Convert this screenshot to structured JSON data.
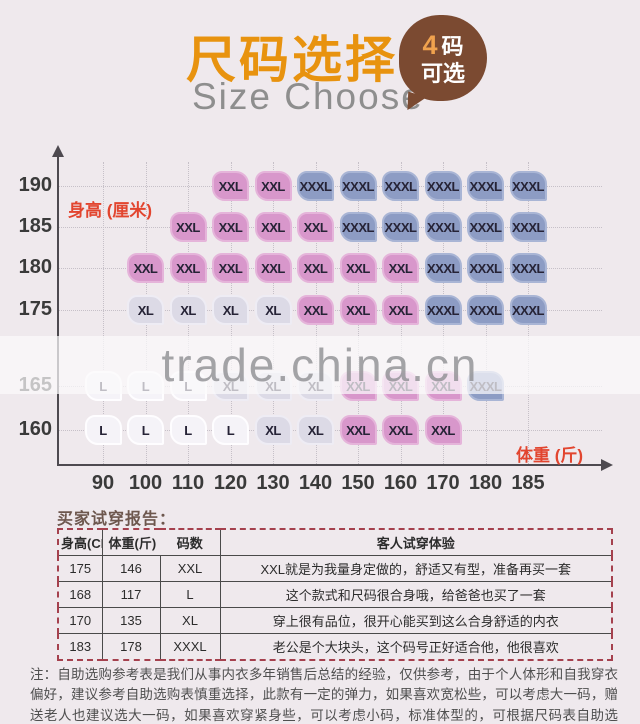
{
  "header": {
    "title_cn": "尺码选择",
    "title_en": "Size Choose",
    "badge": {
      "num": "4",
      "unit": "码",
      "line2": "可选"
    }
  },
  "chart_data": {
    "type": "scatter",
    "title": "尺码选择 Size Choose",
    "xlabel": "体重 (斤)",
    "ylabel": "身高 (厘米)",
    "x_ticks": [
      90,
      100,
      110,
      120,
      130,
      140,
      150,
      160,
      170,
      180,
      185
    ],
    "y_ticks": [
      190,
      185,
      180,
      175,
      165,
      160
    ],
    "legend_sizes": [
      "L",
      "XL",
      "XXL",
      "XXXL"
    ],
    "points": [
      {
        "height": 190,
        "tags": [
          [
            120,
            "XXL"
          ],
          [
            130,
            "XXL"
          ],
          [
            140,
            "XXXL"
          ],
          [
            150,
            "XXXL"
          ],
          [
            160,
            "XXXL"
          ],
          [
            170,
            "XXXL"
          ],
          [
            180,
            "XXXL"
          ],
          [
            185,
            "XXXL"
          ]
        ]
      },
      {
        "height": 185,
        "tags": [
          [
            110,
            "XXL"
          ],
          [
            120,
            "XXL"
          ],
          [
            130,
            "XXL"
          ],
          [
            140,
            "XXL"
          ],
          [
            150,
            "XXXL"
          ],
          [
            160,
            "XXXL"
          ],
          [
            170,
            "XXXL"
          ],
          [
            180,
            "XXXL"
          ],
          [
            185,
            "XXXL"
          ]
        ]
      },
      {
        "height": 180,
        "tags": [
          [
            100,
            "XXL"
          ],
          [
            110,
            "XXL"
          ],
          [
            120,
            "XXL"
          ],
          [
            130,
            "XXL"
          ],
          [
            140,
            "XXL"
          ],
          [
            150,
            "XXL"
          ],
          [
            160,
            "XXL"
          ],
          [
            170,
            "XXXL"
          ],
          [
            180,
            "XXXL"
          ],
          [
            185,
            "XXXL"
          ]
        ]
      },
      {
        "height": 175,
        "tags": [
          [
            100,
            "XL"
          ],
          [
            110,
            "XL"
          ],
          [
            120,
            "XL"
          ],
          [
            130,
            "XL"
          ],
          [
            140,
            "XXL"
          ],
          [
            150,
            "XXL"
          ],
          [
            160,
            "XXL"
          ],
          [
            170,
            "XXXL"
          ],
          [
            180,
            "XXXL"
          ],
          [
            185,
            "XXXL"
          ]
        ]
      },
      {
        "height": 165,
        "tags": [
          [
            90,
            "L"
          ],
          [
            100,
            "L"
          ],
          [
            110,
            "L"
          ],
          [
            120,
            "XL"
          ],
          [
            130,
            "XL"
          ],
          [
            140,
            "XL"
          ],
          [
            150,
            "XXL"
          ],
          [
            160,
            "XXL"
          ],
          [
            170,
            "XXL"
          ],
          [
            180,
            "XXXL"
          ]
        ]
      },
      {
        "height": 160,
        "tags": [
          [
            90,
            "L"
          ],
          [
            100,
            "L"
          ],
          [
            110,
            "L"
          ],
          [
            120,
            "L"
          ],
          [
            130,
            "XL"
          ],
          [
            140,
            "XL"
          ],
          [
            150,
            "XXL"
          ],
          [
            160,
            "XXL"
          ],
          [
            170,
            "XXL"
          ]
        ]
      }
    ]
  },
  "watermark": "trade.china.cn",
  "report": {
    "title": "买家试穿报告：",
    "headers": [
      "身高(CM)",
      "体重(斤)",
      "码数",
      "客人试穿体验"
    ],
    "rows": [
      [
        "175",
        "146",
        "XXL",
        "XXL就是为我量身定做的，舒适又有型，准备再买一套"
      ],
      [
        "168",
        "117",
        "L",
        "这个款式和尺码很合身哦，给爸爸也买了一套"
      ],
      [
        "170",
        "135",
        "XL",
        "穿上很有品位，很开心能买到这么合身舒适的内衣"
      ],
      [
        "183",
        "178",
        "XXXL",
        "老公是个大块头，这个码号正好适合他，他很喜欢"
      ]
    ]
  },
  "note": "注：自助选购参考表是我们从事内衣多年销售后总结的经验，仅供参考，由于个人体形和自我穿衣偏好，建议参考自助选购表慎重选择，此款有一定的弹力，如果喜欢宽松些，可以考虑大一码，赠送老人也建议选大一码，如果喜欢穿紧身些，可以考虑小码，标准体型的，可根据尺码表自助选择。",
  "colors": {
    "accent_orange": "#E8930F",
    "badge_brown": "#7B4A31",
    "axis_label_red": "#E2452F",
    "tag_pink": "#D897CB",
    "tag_blue": "#8D9CC4",
    "tag_lavender": "#DCDAE6",
    "tag_white": "#F5F3F8",
    "table_border_red": "#A5414E"
  }
}
